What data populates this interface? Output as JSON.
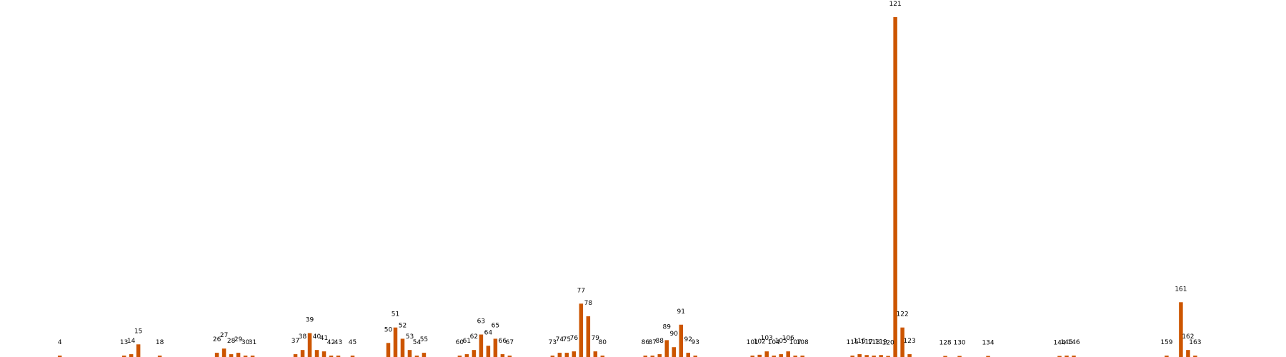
{
  "chart_data": {
    "type": "bar",
    "title": "",
    "xlabel": "",
    "ylabel": "",
    "color": "#CC5500",
    "background": "#FFFFFF",
    "grid": false,
    "axes_visible": false,
    "legend": "none",
    "ylim": [
      0,
      121
    ],
    "categories": [
      "4",
      "13",
      "14",
      "15",
      "18",
      "26",
      "27",
      "28",
      "29",
      "30",
      "31",
      "37",
      "38",
      "39",
      "40",
      "41",
      "42",
      "43",
      "45",
      "50",
      "51",
      "52",
      "53",
      "54",
      "55",
      "60",
      "61",
      "62",
      "63",
      "64",
      "65",
      "66",
      "67",
      "73",
      "74",
      "75",
      "76",
      "77",
      "78",
      "79",
      "80",
      "86",
      "87",
      "88",
      "89",
      "90",
      "91",
      "92",
      "93",
      "101",
      "102",
      "103",
      "104",
      "105",
      "106",
      "107",
      "108",
      "115",
      "116",
      "117",
      "118",
      "119",
      "120",
      "121",
      "122",
      "123",
      "128",
      "130",
      "134",
      "144",
      "145",
      "146",
      "159",
      "161",
      "162",
      "163"
    ],
    "values": [
      0.5,
      0.5,
      1,
      4.5,
      0.5,
      1.5,
      3,
      1,
      1.5,
      0.5,
      0.5,
      1,
      2.5,
      8.5,
      2.5,
      2,
      0.5,
      0.5,
      0.5,
      5,
      10.5,
      6.5,
      2.5,
      0.5,
      1.5,
      0.5,
      1,
      2.5,
      8,
      4,
      6.5,
      1,
      0.5,
      0.5,
      1.5,
      1.5,
      2,
      19,
      14.5,
      2,
      0.5,
      0.5,
      0.5,
      1,
      6,
      3.5,
      11.5,
      1.5,
      0.5,
      0.5,
      0.8,
      2,
      0.5,
      1,
      2,
      0.5,
      0.5,
      0.5,
      1,
      0.7,
      0.5,
      0.7,
      0.3,
      121,
      10.5,
      1,
      0.3,
      0.3,
      0.3,
      0.3,
      0.5,
      0.5,
      0.5,
      19.5,
      2.5,
      0.5
    ]
  }
}
